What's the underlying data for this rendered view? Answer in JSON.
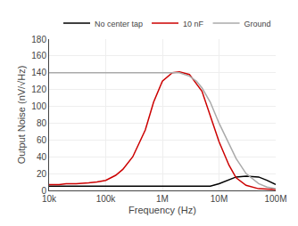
{
  "chart_data": {
    "type": "line",
    "xlabel": "Frequency (Hz)",
    "ylabel": "Output Noise (nV/√Hz)",
    "log": "x",
    "xlim": [
      10000,
      100000000
    ],
    "ylim": [
      0,
      180
    ],
    "xticks": [
      {
        "value": 10000,
        "label": "10k"
      },
      {
        "value": 100000,
        "label": "100k"
      },
      {
        "value": 1000000,
        "label": "1M"
      },
      {
        "value": 10000000,
        "label": "10M"
      },
      {
        "value": 100000000,
        "label": "100M"
      }
    ],
    "yticks": [
      0,
      20,
      40,
      60,
      80,
      100,
      120,
      140,
      160,
      180
    ],
    "grid": true,
    "legend": "upper right",
    "series": [
      {
        "name": "No center tap",
        "color": "#000000",
        "x": [
          10000,
          20000,
          50000,
          100000,
          200000,
          500000,
          1000000,
          2000000,
          5000000,
          7000000,
          10000000,
          15000000,
          20000000,
          30000000,
          50000000,
          70000000,
          100000000
        ],
        "values": [
          5,
          5,
          5,
          5,
          5,
          5,
          5,
          5,
          5,
          5,
          8,
          13,
          16,
          17,
          16,
          12,
          7
        ]
      },
      {
        "name": "10 nF",
        "color": "#cc0000",
        "x": [
          10000,
          15000,
          20000,
          30000,
          50000,
          70000,
          100000,
          150000,
          200000,
          300000,
          500000,
          700000,
          1000000,
          1500000,
          2000000,
          3000000,
          5000000,
          7000000,
          10000000,
          15000000,
          20000000,
          30000000,
          50000000,
          100000000
        ],
        "values": [
          7,
          7,
          8,
          8,
          9,
          10,
          12,
          18,
          25,
          40,
          72,
          105,
          130,
          140,
          141,
          138,
          118,
          90,
          58,
          30,
          15,
          6,
          2,
          1
        ]
      },
      {
        "name": "Ground",
        "color": "#aaaaaa",
        "x": [
          10000,
          100000,
          500000,
          1000000,
          1500000,
          2000000,
          3000000,
          4000000,
          5000000,
          7000000,
          10000000,
          15000000,
          20000000,
          30000000,
          50000000,
          70000000,
          100000000
        ],
        "values": [
          140,
          140,
          140,
          140,
          140,
          140,
          136,
          130,
          122,
          105,
          80,
          55,
          38,
          20,
          8,
          4,
          2
        ]
      }
    ]
  }
}
